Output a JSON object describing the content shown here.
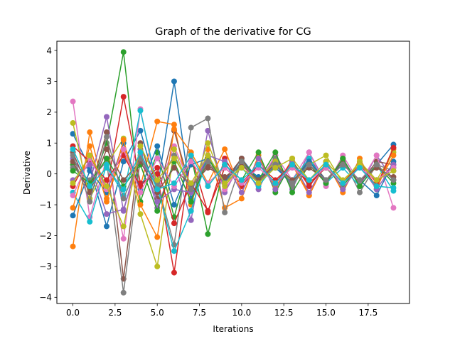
{
  "chart_data": {
    "type": "line",
    "title": "Graph of the derivative for CG",
    "xlabel": "Iterations",
    "ylabel": "Derivative",
    "xlim": [
      -0.95,
      19.95
    ],
    "ylim": [
      -4.2,
      4.3
    ],
    "xticks": [
      0.0,
      2.5,
      5.0,
      7.5,
      10.0,
      12.5,
      15.0,
      17.5
    ],
    "xtick_labels": [
      "0.0",
      "2.5",
      "5.0",
      "7.5",
      "10.0",
      "12.5",
      "15.0",
      "17.5"
    ],
    "yticks": [
      -4,
      -3,
      -2,
      -1,
      0,
      1,
      2,
      3,
      4
    ],
    "ytick_labels": [
      "−4",
      "−3",
      "−2",
      "−1",
      "0",
      "1",
      "2",
      "3",
      "4"
    ],
    "grid": false,
    "legend": false,
    "marker": "circle",
    "x": [
      0,
      1,
      2,
      3,
      4,
      5,
      6,
      7,
      8,
      9,
      10,
      11,
      12,
      13,
      14,
      15,
      16,
      17,
      18,
      19
    ],
    "series": [
      {
        "color": "#1f77b4",
        "values": [
          1.3,
          0.2,
          -1.7,
          0.4,
          1.4,
          -0.5,
          3.0,
          -0.8,
          0.6,
          -0.3,
          0.5,
          -0.2,
          0.3,
          -0.4,
          0.5,
          -0.3,
          0.4,
          -0.3,
          0.3,
          0.95
        ]
      },
      {
        "color": "#ff7f0e",
        "values": [
          -2.35,
          1.35,
          -0.8,
          0.7,
          -0.4,
          1.7,
          1.6,
          -1.0,
          0.8,
          -1.1,
          -0.8,
          0.6,
          -0.5,
          0.5,
          -0.7,
          0.4,
          -0.6,
          0.5,
          -0.5,
          0.8
        ]
      },
      {
        "color": "#2ca02c",
        "values": [
          0.3,
          -0.5,
          1.0,
          3.95,
          -0.9,
          0.7,
          -1.4,
          0.6,
          -1.95,
          0.3,
          -0.2,
          0.7,
          -0.6,
          0.4,
          -0.3,
          0.2,
          -0.4,
          0.3,
          -0.2,
          0.2
        ]
      },
      {
        "color": "#d62728",
        "values": [
          -0.4,
          0.6,
          -0.5,
          2.5,
          -0.3,
          0.0,
          -3.2,
          0.6,
          -1.25,
          0.5,
          -0.4,
          0.3,
          -0.3,
          0.4,
          -0.4,
          0.3,
          -0.3,
          0.4,
          -0.3,
          0.3
        ]
      },
      {
        "color": "#9467bd",
        "values": [
          0.5,
          -0.3,
          1.85,
          -1.2,
          0.8,
          -1.1,
          0.4,
          -1.5,
          1.4,
          -0.6,
          0.4,
          -0.5,
          0.6,
          -0.5,
          0.7,
          -0.3,
          0.5,
          -0.4,
          0.6,
          -0.2
        ]
      },
      {
        "color": "#8c564b",
        "values": [
          0.7,
          -0.6,
          1.35,
          -3.4,
          1.0,
          -0.8,
          1.4,
          -0.5,
          0.3,
          -0.2,
          0.5,
          -0.3,
          0.4,
          -0.3,
          0.5,
          -0.2,
          0.4,
          -0.3,
          0.4,
          0.3
        ]
      },
      {
        "color": "#e377c2",
        "values": [
          2.35,
          -1.4,
          0.5,
          -2.1,
          2.1,
          -0.6,
          0.9,
          -0.4,
          0.6,
          -0.5,
          0.3,
          -0.3,
          0.6,
          -0.2,
          0.7,
          -0.4,
          0.6,
          -0.3,
          0.6,
          -1.1
        ]
      },
      {
        "color": "#7f7f7f",
        "values": [
          0.2,
          -0.2,
          0.4,
          -3.85,
          0.5,
          -0.3,
          -2.3,
          1.5,
          1.8,
          -1.25,
          0.4,
          -0.3,
          0.5,
          -0.4,
          0.4,
          -0.3,
          0.5,
          -0.6,
          0.3,
          0.1
        ]
      },
      {
        "color": "#bcbd22",
        "values": [
          1.65,
          -0.8,
          0.3,
          1.15,
          -1.3,
          -3.0,
          0.8,
          -0.6,
          1.0,
          -0.4,
          0.3,
          -0.2,
          0.4,
          -0.3,
          0.3,
          0.6,
          -0.3,
          0.4,
          -0.2,
          0.7
        ]
      },
      {
        "color": "#17becf",
        "values": [
          -0.6,
          -1.55,
          0.3,
          -0.7,
          2.05,
          -0.4,
          -2.5,
          -1.2,
          0.6,
          -0.3,
          0.2,
          -0.4,
          0.3,
          -0.2,
          0.5,
          -0.3,
          0.2,
          -0.4,
          0.3,
          -0.55
        ]
      },
      {
        "color": "#1f77b4",
        "values": [
          -1.35,
          0.1,
          -0.6,
          1.0,
          -0.5,
          0.9,
          -1.0,
          0.3,
          0.5,
          -0.2,
          0.3,
          -0.1,
          0.2,
          -0.3,
          0.4,
          -0.2,
          0.3,
          -0.2,
          -0.7,
          0.4
        ]
      },
      {
        "color": "#ff7f0e",
        "values": [
          -1.1,
          0.9,
          -0.9,
          1.1,
          -1.0,
          -2.05,
          1.45,
          0.7,
          -0.3,
          0.8,
          -0.6,
          0.5,
          -0.4,
          0.3,
          -0.7,
          0.4,
          -0.5,
          0.3,
          -0.4,
          0.6
        ]
      },
      {
        "color": "#2ca02c",
        "values": [
          0.1,
          -0.3,
          0.5,
          -0.4,
          0.3,
          -1.2,
          0.4,
          -0.9,
          0.5,
          -0.3,
          0.4,
          -0.2,
          0.7,
          -0.6,
          0.3,
          -0.3,
          0.5,
          -0.4,
          0.3,
          -0.3
        ]
      },
      {
        "color": "#d62728",
        "values": [
          0.9,
          0.4,
          -0.2,
          0.6,
          -0.4,
          0.2,
          -1.6,
          -0.3,
          -1.2,
          0.2,
          -0.3,
          0.3,
          -0.2,
          0.3,
          -0.3,
          0.2,
          -0.3,
          0.3,
          -0.4,
          0.85
        ]
      },
      {
        "color": "#9467bd",
        "values": [
          -0.2,
          0.3,
          -1.3,
          -1.15,
          0.6,
          -0.9,
          -0.5,
          -0.6,
          0.6,
          0.4,
          -0.6,
          0.5,
          -0.5,
          0.4,
          -0.6,
          0.4,
          -0.5,
          0.3,
          -0.5,
          0.3
        ]
      },
      {
        "color": "#8c564b",
        "values": [
          0.4,
          -0.6,
          0.8,
          -0.2,
          0.4,
          -0.6,
          0.2,
          -0.4,
          0.2,
          -0.1,
          0.3,
          -0.2,
          0.3,
          -0.2,
          0.2,
          -0.2,
          0.3,
          -0.2,
          0.2,
          -0.1
        ]
      },
      {
        "color": "#e377c2",
        "values": [
          -0.7,
          0.5,
          -0.5,
          0.8,
          -0.6,
          0.5,
          -0.4,
          0.4,
          -0.3,
          0.2,
          -0.3,
          0.2,
          -0.3,
          0.2,
          -0.2,
          0.2,
          -0.3,
          0.2,
          -0.2,
          0.2
        ]
      },
      {
        "color": "#7f7f7f",
        "values": [
          0.6,
          -0.9,
          1.2,
          -0.8,
          0.5,
          -0.4,
          0.6,
          -0.5,
          0.4,
          -0.3,
          0.4,
          -0.3,
          0.3,
          -0.3,
          0.3,
          -0.2,
          0.3,
          -0.2,
          0.3,
          -0.2
        ]
      },
      {
        "color": "#bcbd22",
        "values": [
          -0.3,
          0.6,
          -0.4,
          -1.7,
          0.9,
          -0.2,
          0.5,
          -0.3,
          0.6,
          -0.3,
          0.2,
          -0.3,
          0.2,
          0.5,
          -0.2,
          0.4,
          -0.2,
          0.3,
          -0.2,
          0.1
        ]
      },
      {
        "color": "#17becf",
        "values": [
          0.8,
          -0.4,
          0.2,
          -0.5,
          0.7,
          -0.5,
          -0.3,
          0.6,
          -0.4,
          0.3,
          -0.2,
          0.3,
          -0.3,
          0.3,
          -0.2,
          0.3,
          -0.3,
          0.2,
          -0.4,
          -0.45
        ]
      }
    ]
  }
}
